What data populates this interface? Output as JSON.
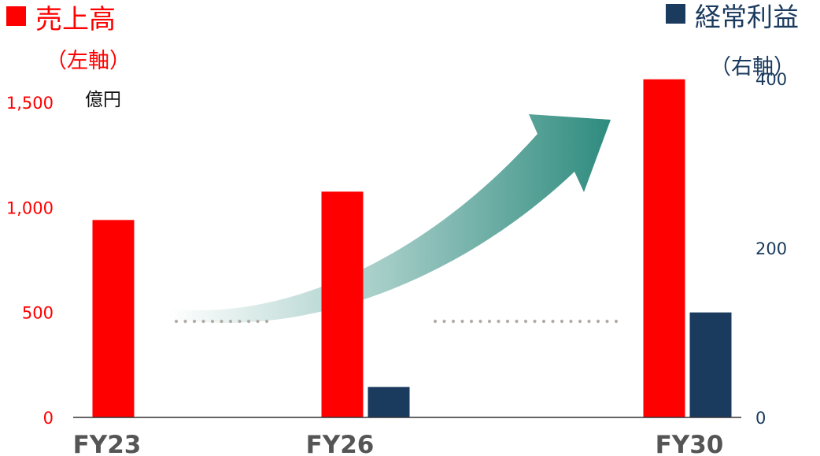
{
  "chart_data": {
    "type": "bar",
    "categories": [
      "FY23",
      "FY26",
      "FY30"
    ],
    "series": [
      {
        "name": "売上高",
        "axis": "left",
        "color": "#ff0000",
        "values": [
          940,
          1075,
          1610
        ]
      },
      {
        "name": "経常利益",
        "axis": "right",
        "color": "#1a3a5e",
        "values": [
          null,
          36,
          124
        ]
      }
    ],
    "left_axis": {
      "ticks": [
        "1,500",
        "1,000",
        "500",
        "0"
      ],
      "tick_values": [
        1500,
        1000,
        500,
        0
      ],
      "ylim": [
        0,
        1500
      ],
      "label": "（左軸）",
      "color": "#ff0000"
    },
    "right_axis": {
      "ticks": [
        "400",
        "200",
        "0"
      ],
      "tick_values": [
        400,
        200,
        0
      ],
      "ylim": [
        0,
        400
      ],
      "label": "（右軸）",
      "color": "#1a3a5e"
    },
    "unit": "億円",
    "legend": {
      "left": "売上高",
      "right": "経常利益"
    },
    "arrow_color": "#2e8b7e"
  }
}
